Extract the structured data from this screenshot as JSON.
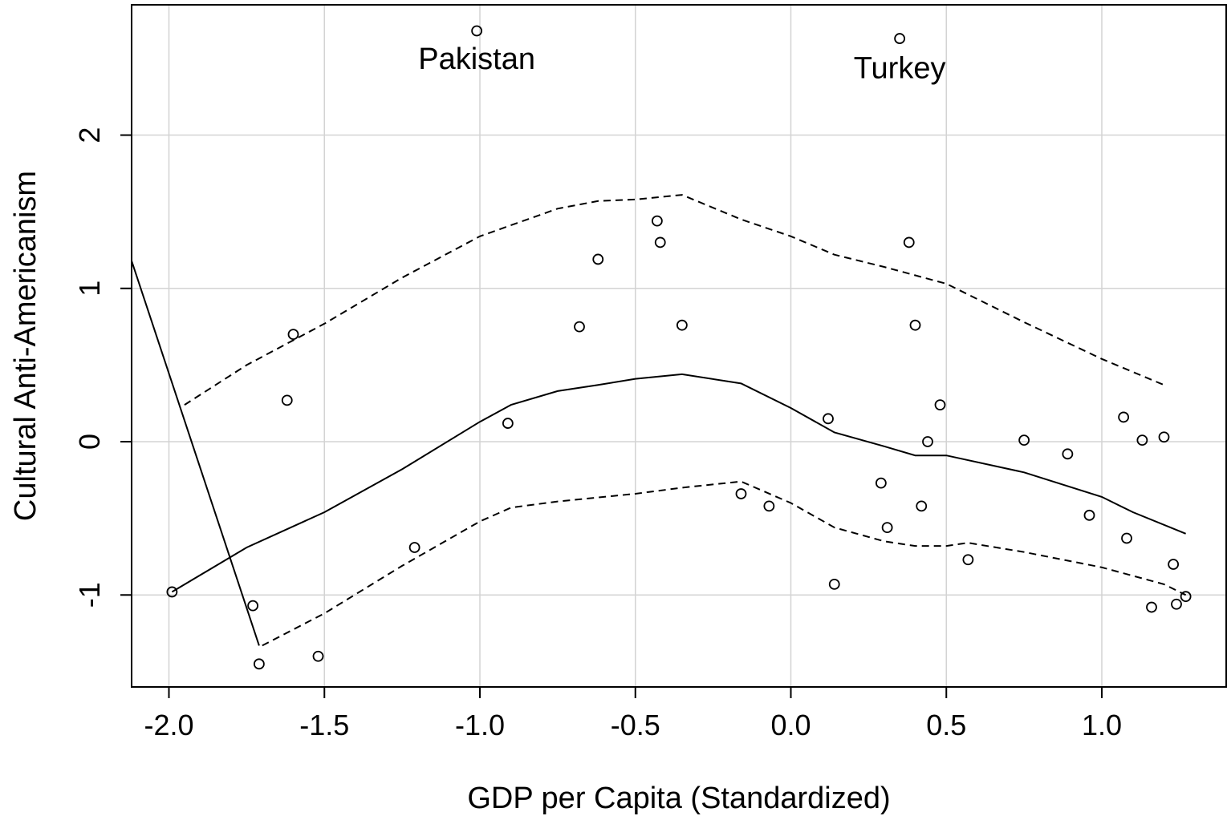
{
  "chart_data": {
    "type": "scatter",
    "title": "",
    "xlabel": "GDP per Capita (Standardized)",
    "ylabel": "Cultural Anti-Americanism",
    "xlim": [
      -2.12,
      1.4
    ],
    "ylim": [
      -1.6,
      2.85
    ],
    "grid": true,
    "x_ticks": [
      -2.0,
      -1.5,
      -1.0,
      -0.5,
      0.0,
      0.5,
      1.0
    ],
    "x_tick_labels": [
      "-2.0",
      "-1.5",
      "-1.0",
      "-0.5",
      "0.0",
      "0.5",
      "1.0"
    ],
    "y_ticks": [
      -1,
      0,
      1,
      2
    ],
    "y_tick_labels": [
      "-1",
      "0",
      "1",
      "2"
    ],
    "annotations": [
      {
        "text": "Pakistan",
        "x": -1.01,
        "y": 2.5
      },
      {
        "text": "Turkey",
        "x": 0.35,
        "y": 2.44
      }
    ],
    "points": [
      {
        "x": -1.01,
        "y": 2.68
      },
      {
        "x": 0.35,
        "y": 2.63
      },
      {
        "x": -0.43,
        "y": 1.44
      },
      {
        "x": -0.42,
        "y": 1.3
      },
      {
        "x": 0.38,
        "y": 1.3
      },
      {
        "x": -0.62,
        "y": 1.19
      },
      {
        "x": -0.68,
        "y": 0.75
      },
      {
        "x": -0.35,
        "y": 0.76
      },
      {
        "x": 0.4,
        "y": 0.76
      },
      {
        "x": -1.6,
        "y": 0.7
      },
      {
        "x": -1.62,
        "y": 0.27
      },
      {
        "x": 0.48,
        "y": 0.24
      },
      {
        "x": -0.91,
        "y": 0.12
      },
      {
        "x": 0.12,
        "y": 0.15
      },
      {
        "x": 1.07,
        "y": 0.16
      },
      {
        "x": 1.2,
        "y": 0.03
      },
      {
        "x": 0.44,
        "y": 0.0
      },
      {
        "x": 0.75,
        "y": 0.01
      },
      {
        "x": 1.13,
        "y": 0.01
      },
      {
        "x": 0.89,
        "y": -0.08
      },
      {
        "x": 0.29,
        "y": -0.27
      },
      {
        "x": -0.16,
        "y": -0.34
      },
      {
        "x": -0.07,
        "y": -0.42
      },
      {
        "x": 0.42,
        "y": -0.42
      },
      {
        "x": 0.96,
        "y": -0.48
      },
      {
        "x": 0.31,
        "y": -0.56
      },
      {
        "x": 1.08,
        "y": -0.63
      },
      {
        "x": -1.21,
        "y": -0.69
      },
      {
        "x": 0.57,
        "y": -0.77
      },
      {
        "x": 1.23,
        "y": -0.8
      },
      {
        "x": 0.14,
        "y": -0.93
      },
      {
        "x": -1.99,
        "y": -0.98
      },
      {
        "x": 1.27,
        "y": -1.01
      },
      {
        "x": 1.24,
        "y": -1.06
      },
      {
        "x": -1.73,
        "y": -1.07
      },
      {
        "x": 1.16,
        "y": -1.08
      },
      {
        "x": -1.52,
        "y": -1.4
      },
      {
        "x": -1.71,
        "y": -1.45
      }
    ],
    "series": [
      {
        "style": "solid",
        "points": [
          [
            -1.99,
            -0.98
          ],
          [
            -1.75,
            -0.69
          ],
          [
            -1.5,
            -0.46
          ],
          [
            -1.25,
            -0.18
          ],
          [
            -1.0,
            0.13
          ],
          [
            -0.9,
            0.24
          ],
          [
            -0.75,
            0.33
          ],
          [
            -0.62,
            0.37
          ],
          [
            -0.5,
            0.41
          ],
          [
            -0.35,
            0.44
          ],
          [
            -0.16,
            0.38
          ],
          [
            0.0,
            0.22
          ],
          [
            0.14,
            0.06
          ],
          [
            0.3,
            -0.03
          ],
          [
            0.4,
            -0.09
          ],
          [
            0.5,
            -0.09
          ],
          [
            0.75,
            -0.2
          ],
          [
            1.0,
            -0.36
          ],
          [
            1.1,
            -0.46
          ],
          [
            1.27,
            -0.6
          ]
        ]
      },
      {
        "style": "dashed",
        "points": [
          [
            -1.95,
            0.24
          ],
          [
            -1.75,
            0.5
          ],
          [
            -1.5,
            0.77
          ],
          [
            -1.25,
            1.07
          ],
          [
            -1.0,
            1.34
          ],
          [
            -0.75,
            1.52
          ],
          [
            -0.62,
            1.57
          ],
          [
            -0.5,
            1.58
          ],
          [
            -0.35,
            1.61
          ],
          [
            -0.16,
            1.45
          ],
          [
            0.0,
            1.34
          ],
          [
            0.14,
            1.22
          ],
          [
            0.3,
            1.14
          ],
          [
            0.5,
            1.03
          ],
          [
            0.75,
            0.78
          ],
          [
            1.0,
            0.54
          ],
          [
            1.2,
            0.37
          ]
        ]
      },
      {
        "style": "dashed",
        "points": [
          [
            -1.7,
            -1.33
          ],
          [
            -1.5,
            -1.12
          ],
          [
            -1.25,
            -0.81
          ],
          [
            -1.0,
            -0.52
          ],
          [
            -0.9,
            -0.43
          ],
          [
            -0.75,
            -0.39
          ],
          [
            -0.5,
            -0.34
          ],
          [
            -0.35,
            -0.3
          ],
          [
            -0.16,
            -0.26
          ],
          [
            0.0,
            -0.4
          ],
          [
            0.14,
            -0.56
          ],
          [
            0.3,
            -0.65
          ],
          [
            0.4,
            -0.68
          ],
          [
            0.5,
            -0.68
          ],
          [
            0.57,
            -0.66
          ],
          [
            0.75,
            -0.72
          ],
          [
            1.0,
            -0.82
          ],
          [
            1.2,
            -0.93
          ],
          [
            1.27,
            -1.0
          ]
        ]
      },
      {
        "style": "solid",
        "points": [
          [
            -2.12,
            1.18
          ],
          [
            -1.71,
            -1.33
          ]
        ]
      }
    ]
  }
}
